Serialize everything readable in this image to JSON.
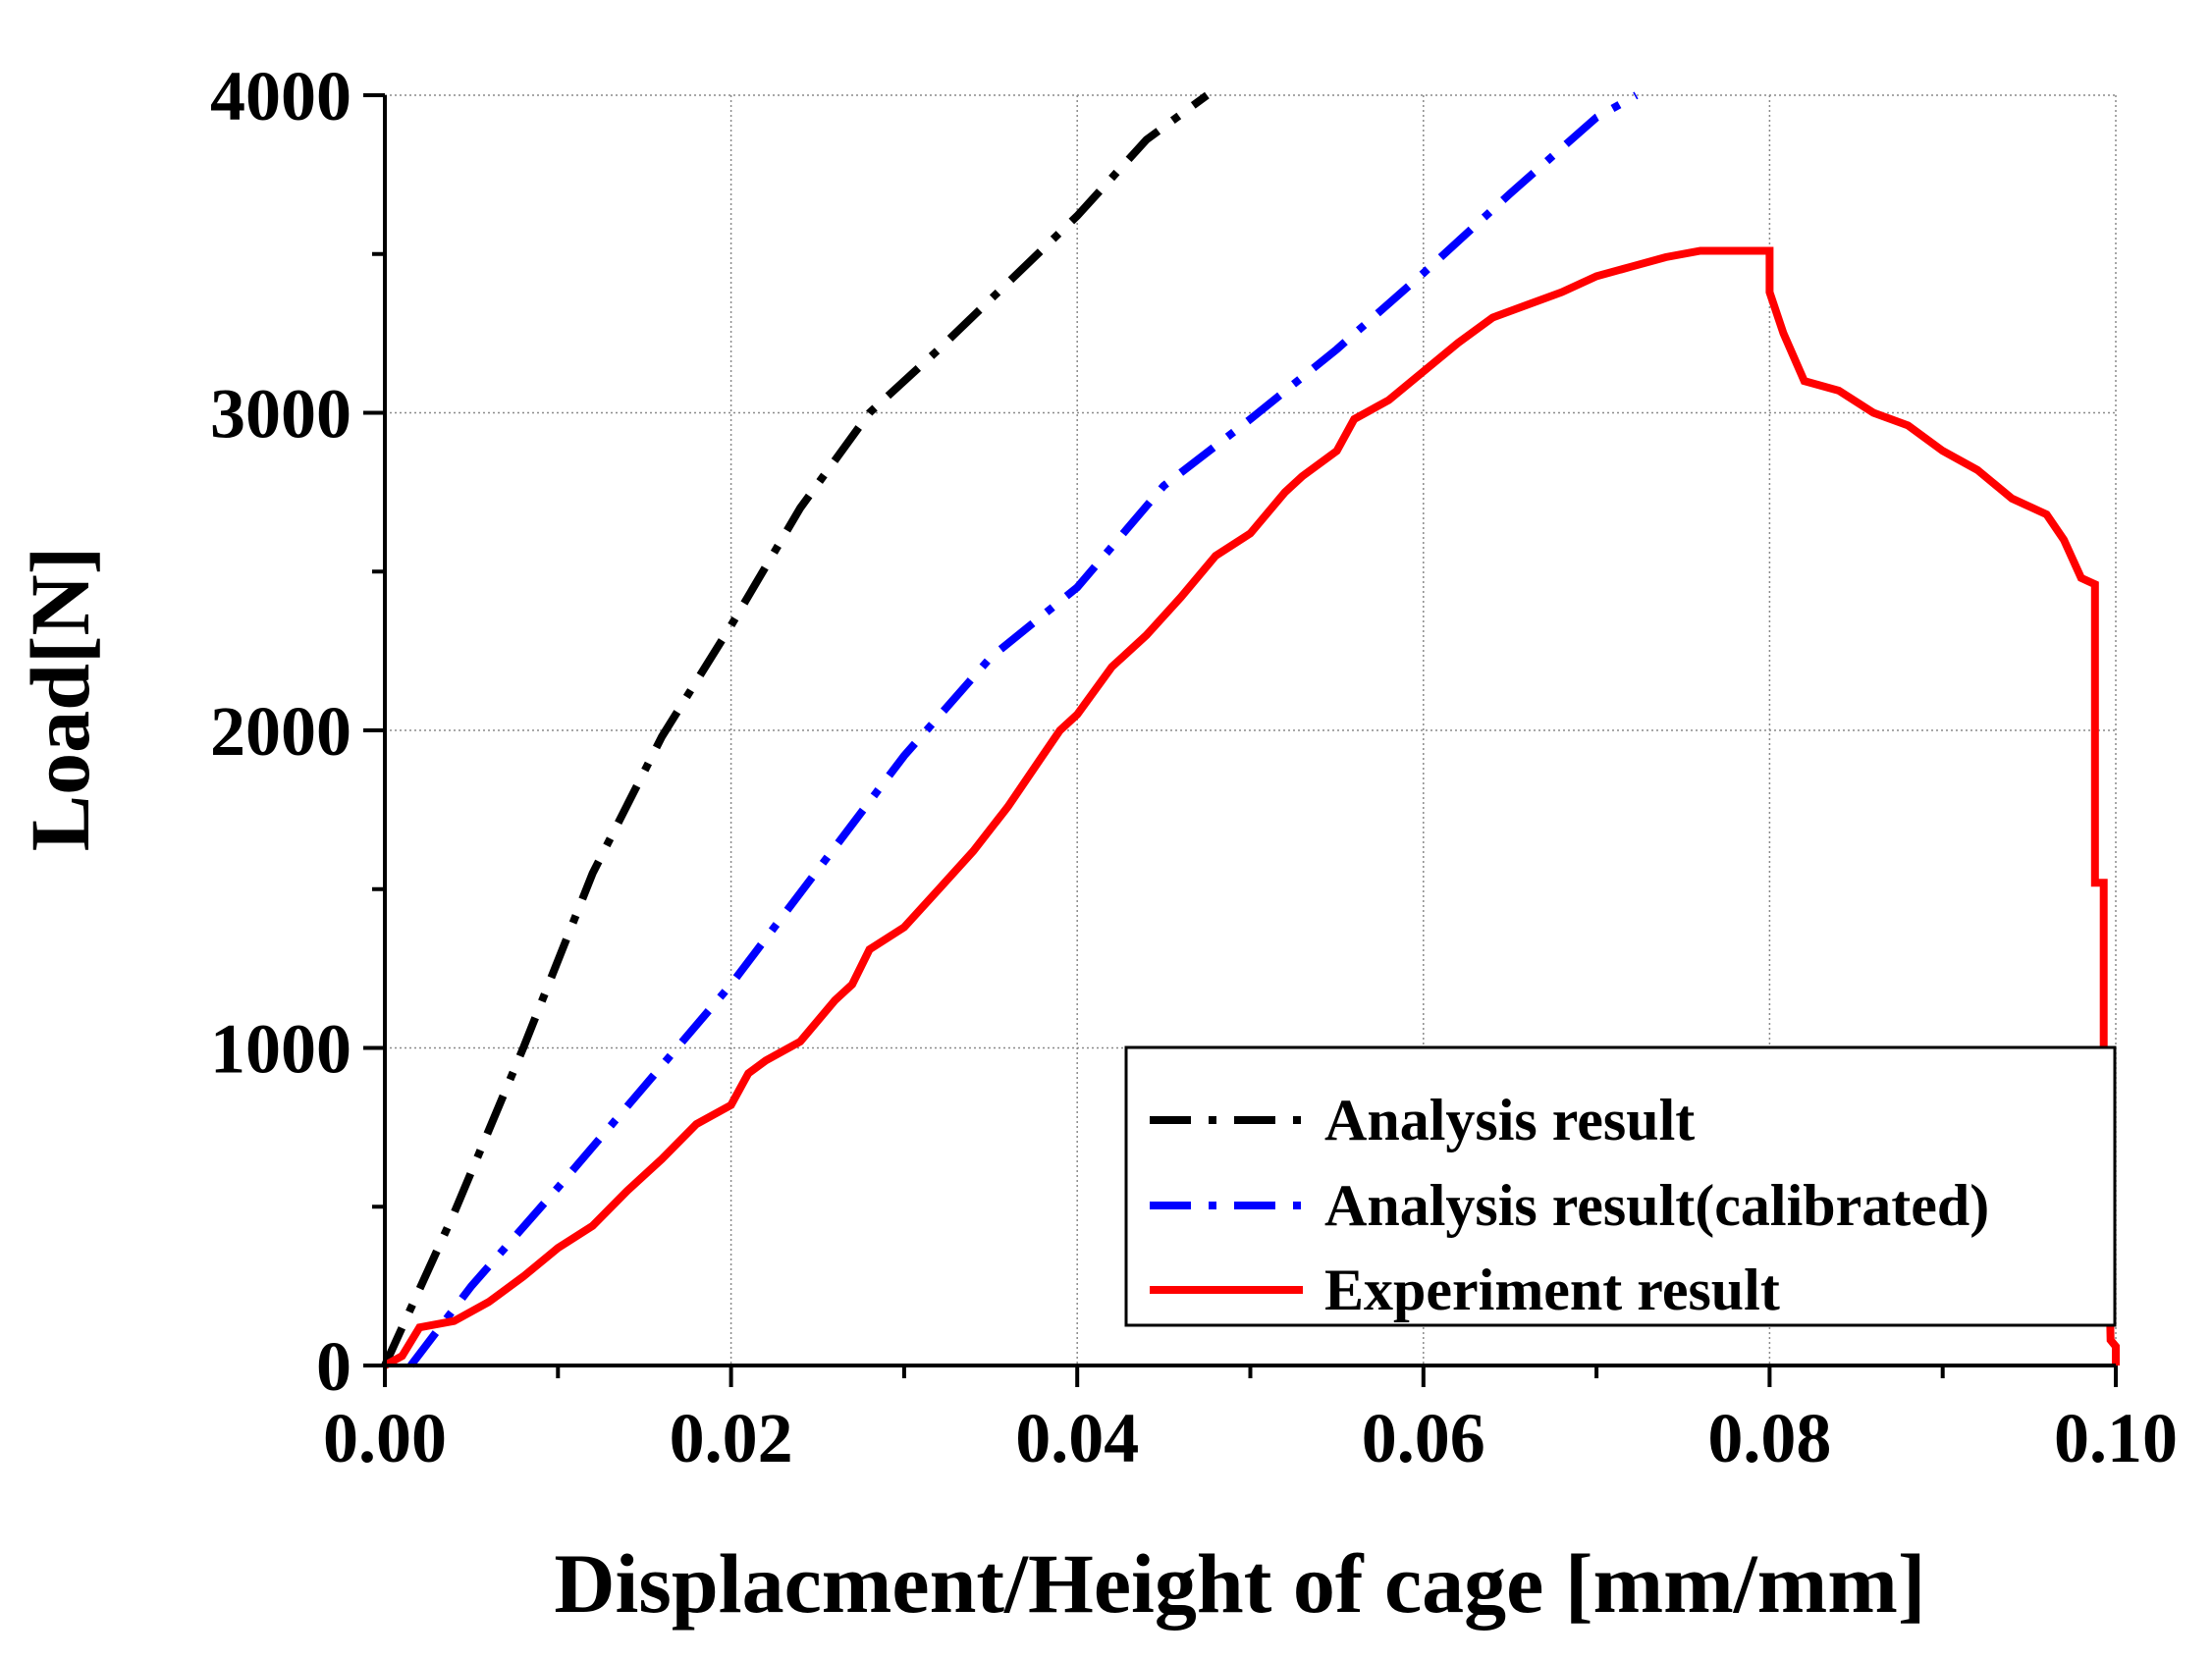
{
  "chart_data": {
    "type": "line",
    "title": "",
    "xlabel": "Displacment/Height of cage [mm/mm]",
    "ylabel": "Load[N]",
    "xlim": [
      0,
      0.1
    ],
    "ylim": [
      0,
      4000
    ],
    "x_ticks": [
      0.0,
      0.02,
      0.04,
      0.06,
      0.08,
      0.1
    ],
    "x_tick_labels": [
      "0.00",
      "0.02",
      "0.04",
      "0.06",
      "0.08",
      "0.10"
    ],
    "y_ticks": [
      0,
      1000,
      2000,
      3000,
      4000
    ],
    "y_tick_labels": [
      "0",
      "1000",
      "2000",
      "3000",
      "4000"
    ],
    "grid": true,
    "legend_position": "bottom-right",
    "series": [
      {
        "name": "Analysis result",
        "color": "#000000",
        "style": "dash-dot",
        "x": [
          0.0,
          0.004,
          0.008,
          0.012,
          0.016,
          0.02,
          0.024,
          0.028,
          0.032,
          0.036,
          0.04,
          0.044,
          0.0475
        ],
        "y": [
          0,
          480,
          1000,
          1550,
          1980,
          2330,
          2700,
          3000,
          3200,
          3410,
          3620,
          3860,
          4000
        ]
      },
      {
        "name": "Analysis result(calibrated)",
        "color": "#0000ff",
        "style": "dash-dot",
        "x": [
          0.0015,
          0.005,
          0.01,
          0.015,
          0.02,
          0.025,
          0.03,
          0.035,
          0.04,
          0.045,
          0.05,
          0.055,
          0.06,
          0.065,
          0.07,
          0.0723
        ],
        "y": [
          0,
          250,
          560,
          880,
          1200,
          1560,
          1920,
          2230,
          2450,
          2770,
          2980,
          3200,
          3440,
          3690,
          3930,
          4000
        ]
      },
      {
        "name": "Experiment result",
        "color": "#ff0000",
        "style": "solid",
        "x": [
          0.0,
          0.001,
          0.002,
          0.004,
          0.006,
          0.008,
          0.01,
          0.012,
          0.014,
          0.016,
          0.018,
          0.02,
          0.021,
          0.022,
          0.024,
          0.026,
          0.027,
          0.028,
          0.03,
          0.032,
          0.034,
          0.036,
          0.038,
          0.039,
          0.04,
          0.042,
          0.044,
          0.046,
          0.048,
          0.05,
          0.052,
          0.053,
          0.055,
          0.056,
          0.058,
          0.06,
          0.062,
          0.064,
          0.066,
          0.068,
          0.07,
          0.072,
          0.074,
          0.076,
          0.078,
          0.08,
          0.08,
          0.0808,
          0.082,
          0.084,
          0.086,
          0.088,
          0.09,
          0.092,
          0.094,
          0.096,
          0.097,
          0.098,
          0.0988,
          0.0988,
          0.0993,
          0.0993,
          0.0995,
          0.0997,
          0.1,
          0.1
        ],
        "y": [
          0,
          30,
          120,
          140,
          200,
          280,
          370,
          440,
          550,
          650,
          760,
          820,
          920,
          960,
          1020,
          1150,
          1200,
          1310,
          1380,
          1500,
          1620,
          1760,
          1920,
          2000,
          2050,
          2200,
          2300,
          2420,
          2550,
          2620,
          2750,
          2800,
          2880,
          2980,
          3040,
          3130,
          3220,
          3300,
          3340,
          3380,
          3430,
          3460,
          3490,
          3510,
          3510,
          3510,
          3380,
          3250,
          3100,
          3070,
          3000,
          2960,
          2880,
          2820,
          2730,
          2680,
          2600,
          2480,
          2460,
          1520,
          1520,
          1000,
          600,
          80,
          60,
          0
        ]
      }
    ]
  }
}
